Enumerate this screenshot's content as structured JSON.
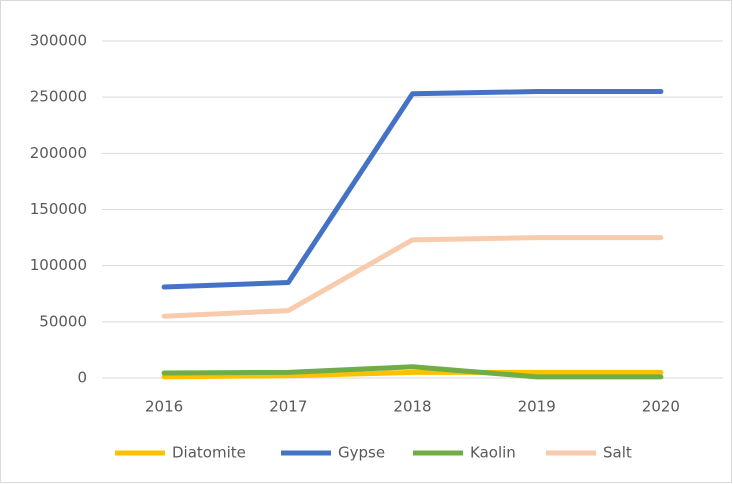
{
  "chart_data": {
    "type": "line",
    "categories": [
      "2016",
      "2017",
      "2018",
      "2019",
      "2020"
    ],
    "series": [
      {
        "name": "Diatomite",
        "color": "#ffc000",
        "values": [
          1000,
          2000,
          5000,
          5000,
          5000
        ]
      },
      {
        "name": "Gypse",
        "color": "#4472c4",
        "values": [
          81000,
          85000,
          253000,
          255000,
          255000
        ]
      },
      {
        "name": "Kaolin",
        "color": "#70ad47",
        "values": [
          4500,
          5000,
          10000,
          1000,
          1000
        ]
      },
      {
        "name": "Salt",
        "color": "#f8cbad",
        "values": [
          55000,
          60000,
          123000,
          125000,
          125000
        ]
      }
    ],
    "ylim": [
      0,
      300000
    ],
    "yticks": [
      0,
      50000,
      100000,
      150000,
      200000,
      250000,
      300000
    ],
    "grid": true,
    "legend": "bottom"
  }
}
